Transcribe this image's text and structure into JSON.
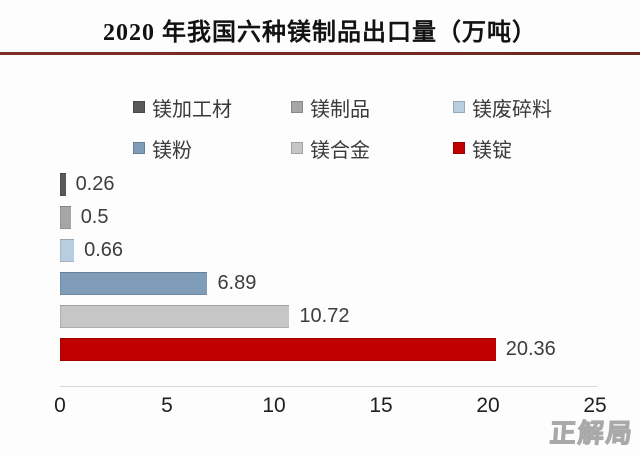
{
  "title": "2020 年我国六种镁制品出口量（万吨）",
  "watermark": "正解局",
  "chart_data": {
    "type": "bar",
    "orientation": "horizontal",
    "title": "2020 年我国六种镁制品出口量（万吨）",
    "unit": "万吨",
    "categories": [
      "镁加工材",
      "镁制品",
      "镁废碎料",
      "镁粉",
      "镁合金",
      "镁锭"
    ],
    "values": [
      0.26,
      0.5,
      0.66,
      6.89,
      10.72,
      20.36
    ],
    "value_labels": [
      "0.26",
      "0.5",
      "0.66",
      "6.89",
      "10.72",
      "20.36"
    ],
    "bar_colors": [
      "#595959",
      "#a6a6a6",
      "#b9cde0",
      "#7f9db9",
      "#c6c6c6",
      "#c00000"
    ],
    "xlim": [
      0,
      25
    ],
    "x_ticks": [
      "0",
      "5",
      "10",
      "15",
      "20",
      "25"
    ],
    "grid": false,
    "legend_position": "top",
    "legend_rows": [
      [
        "镁加工材",
        "镁制品",
        "镁废碎料"
      ],
      [
        "镁粉",
        "镁合金",
        "镁锭"
      ]
    ]
  },
  "colors": {
    "divider": "#74291e",
    "axis_line": "#d6d6d6",
    "value_label": "#3d3d3d",
    "tick_label": "#1f1f1f",
    "accent_red": "#c00000"
  }
}
